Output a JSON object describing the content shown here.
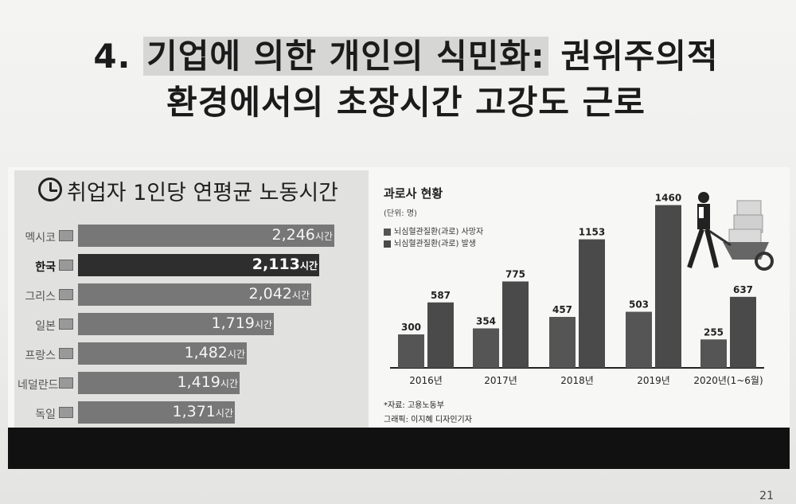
{
  "slide": {
    "title_line1_prefix": "4.",
    "title_line1_highlight": "기업에 의한 개인의 식민화:",
    "title_line1_rest": "권위주의적",
    "title_line2": "환경에서의 초장시간 고강도 근로",
    "page_number": "21"
  },
  "chart_data": [
    {
      "type": "bar",
      "orientation": "horizontal",
      "title": "취업자 1인당 연평균 노동시간",
      "categories": [
        "멕시코",
        "한국",
        "그리스",
        "일본",
        "프랑스",
        "네덜란드",
        "독일"
      ],
      "values": [
        2246,
        2113,
        2042,
        1719,
        1482,
        1419,
        1371
      ],
      "value_labels": [
        "2,246",
        "2,113",
        "2,042",
        "1,719",
        "1,482",
        "1,419",
        "1,371"
      ],
      "unit": "시간",
      "highlight": "한국",
      "colors": {
        "bar": "#777777",
        "highlight": "#2e2e2e"
      }
    },
    {
      "type": "bar",
      "title": "과로사 현황",
      "unit_label": "(단위: 명)",
      "categories": [
        "2016년",
        "2017년",
        "2018년",
        "2019년",
        "2020년(1~6월)"
      ],
      "series": [
        {
          "name": "뇌심혈관질환(과로) 사망자",
          "values": [
            300,
            354,
            457,
            503,
            255
          ],
          "color": "#555555"
        },
        {
          "name": "뇌심혈관질환(과로) 발생",
          "values": [
            587,
            775,
            1153,
            1460,
            637
          ],
          "color": "#4a4a4a"
        }
      ],
      "ylim": [
        0,
        1500
      ],
      "source": "*자료: 고용노동부",
      "credit": "그래픽: 이지혜 디자인기자"
    }
  ]
}
